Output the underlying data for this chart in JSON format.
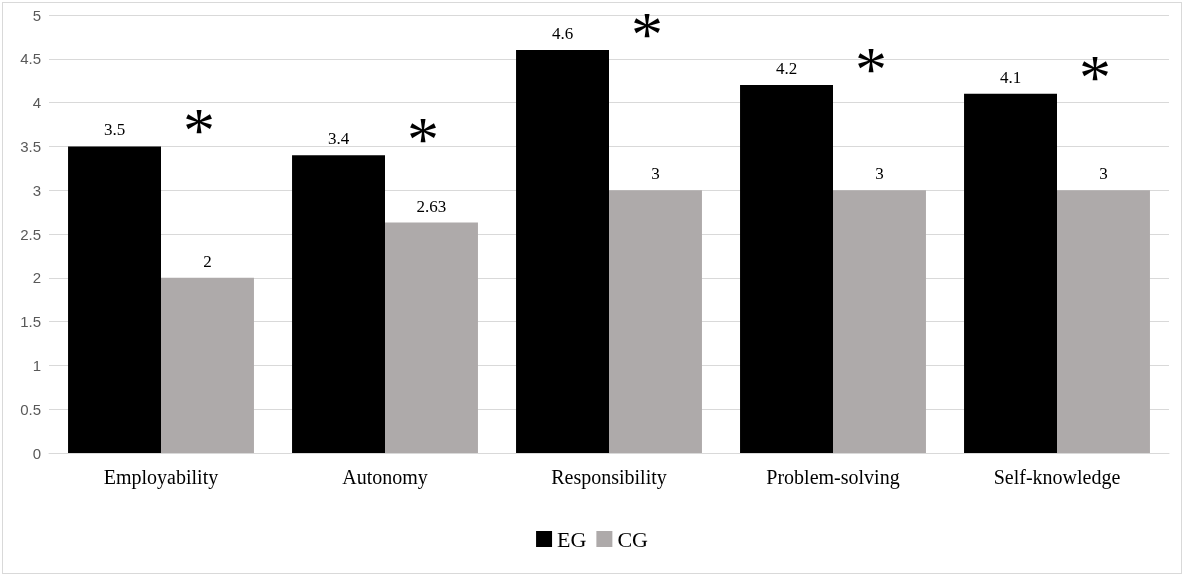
{
  "chart_data": {
    "type": "bar",
    "categories": [
      "Employability",
      "Autonomy",
      "Responsibility",
      "Problem-solving",
      "Self-knowledge"
    ],
    "series": [
      {
        "name": "EG",
        "color": "#000000",
        "values": [
          3.5,
          3.4,
          4.6,
          4.2,
          4.1
        ]
      },
      {
        "name": "CG",
        "color": "#aeaaaa",
        "values": [
          2,
          2.63,
          3,
          3,
          3
        ]
      }
    ],
    "ylim": [
      0,
      5
    ],
    "yticks": [
      0,
      0.5,
      1,
      1.5,
      2,
      2.5,
      3,
      3.5,
      4,
      4.5,
      5
    ],
    "grid": "y",
    "legend": "bottom",
    "data_labels": true,
    "annotations": [
      {
        "text": "*",
        "x": "Employability",
        "y": 3.5
      },
      {
        "text": "*",
        "x": "Autonomy",
        "y": 3.4
      },
      {
        "text": "*",
        "x": "Responsibility",
        "y": 4.6
      },
      {
        "text": "*",
        "x": "Problem-solving",
        "y": 4.2
      },
      {
        "text": "*",
        "x": "Self-knowledge",
        "y": 4.1
      }
    ]
  }
}
